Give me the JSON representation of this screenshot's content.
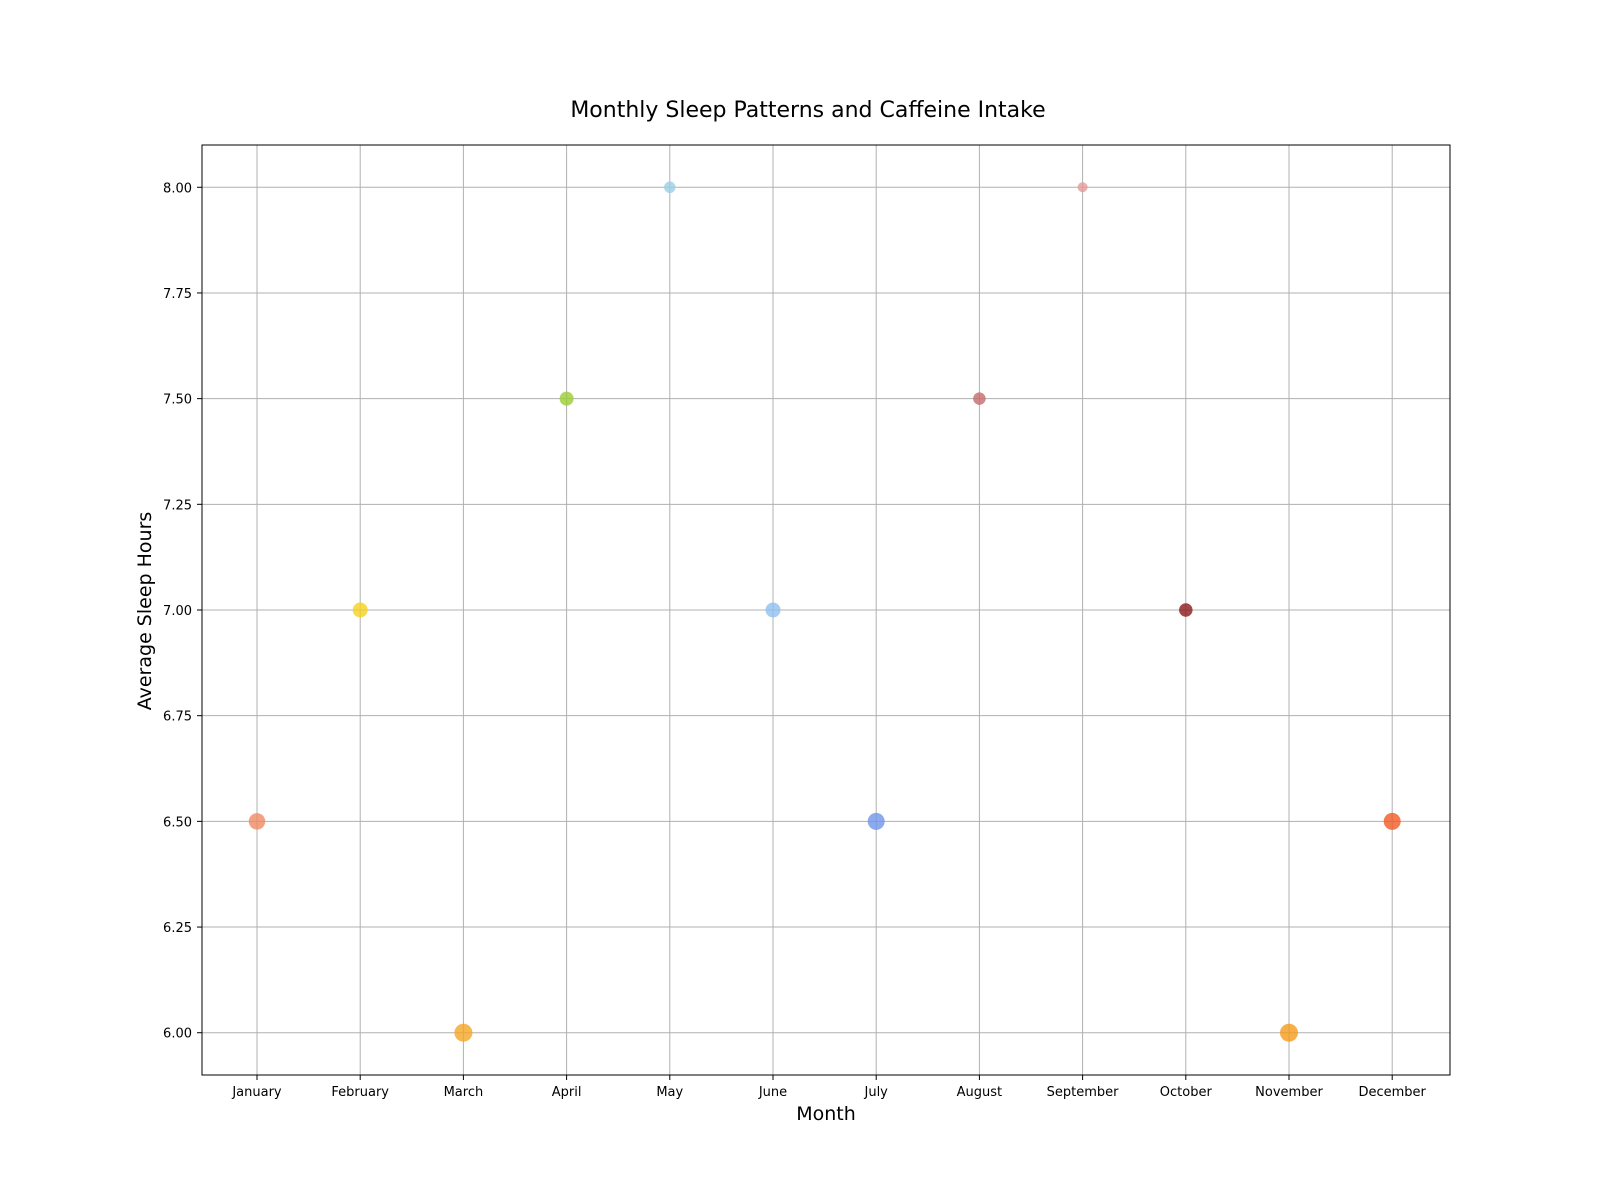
{
  "chart_data": {
    "type": "scatter",
    "title": "Monthly Sleep Patterns and Caffeine Intake",
    "xlabel": "Month",
    "ylabel": "Average Sleep Hours",
    "categories": [
      "January",
      "February",
      "March",
      "April",
      "May",
      "June",
      "July",
      "August",
      "September",
      "October",
      "November",
      "December"
    ],
    "ylim": [
      5.9,
      8.1
    ],
    "yticks": [
      "6.00",
      "6.25",
      "6.50",
      "6.75",
      "7.00",
      "7.25",
      "7.50",
      "7.75",
      "8.00"
    ],
    "grid": true,
    "legend": "none",
    "points": [
      {
        "x": "January",
        "y": 6.5,
        "relative_size": 0.85,
        "color": "#f08a64"
      },
      {
        "x": "February",
        "y": 7.0,
        "relative_size": 0.7,
        "color": "#f5d21e"
      },
      {
        "x": "March",
        "y": 6.0,
        "relative_size": 1.0,
        "color": "#f5a623"
      },
      {
        "x": "April",
        "y": 7.5,
        "relative_size": 0.6,
        "color": "#9acd32"
      },
      {
        "x": "May",
        "y": 8.0,
        "relative_size": 0.35,
        "color": "#9bd0e6"
      },
      {
        "x": "June",
        "y": 7.0,
        "relative_size": 0.7,
        "color": "#8ec0f0"
      },
      {
        "x": "July",
        "y": 6.5,
        "relative_size": 0.9,
        "color": "#6f95e8"
      },
      {
        "x": "August",
        "y": 7.5,
        "relative_size": 0.45,
        "color": "#c46a6a"
      },
      {
        "x": "September",
        "y": 8.0,
        "relative_size": 0.2,
        "color": "#e49a9a"
      },
      {
        "x": "October",
        "y": 7.0,
        "relative_size": 0.55,
        "color": "#8b1a1a"
      },
      {
        "x": "November",
        "y": 6.0,
        "relative_size": 1.0,
        "color": "#f59b1c"
      },
      {
        "x": "December",
        "y": 6.5,
        "relative_size": 0.9,
        "color": "#f05a23"
      }
    ]
  }
}
